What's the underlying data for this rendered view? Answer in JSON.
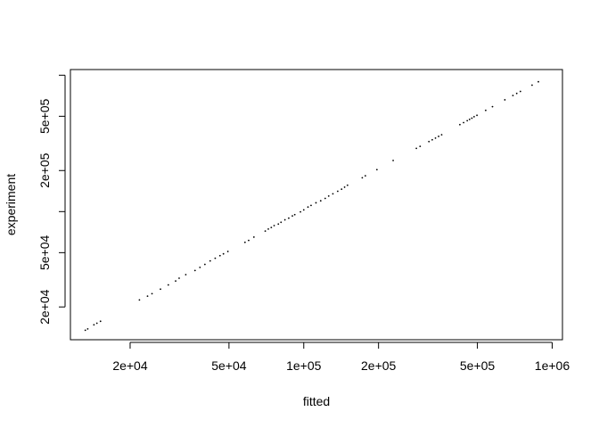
{
  "chart_data": {
    "type": "scatter",
    "title": "",
    "xlabel": "fitted",
    "ylabel": "experiment",
    "xscale": "log",
    "yscale": "log",
    "xlim": [
      11500,
      1100000
    ],
    "ylim": [
      11500,
      1100000
    ],
    "grid": false,
    "legend": "none",
    "point_color": "#000000",
    "x_ticks": [
      {
        "value": 20000,
        "label": "2e+04"
      },
      {
        "value": 50000,
        "label": "5e+04"
      },
      {
        "value": 100000,
        "label": "1e+05"
      },
      {
        "value": 200000,
        "label": "2e+05"
      },
      {
        "value": 500000,
        "label": "5e+05"
      },
      {
        "value": 1000000,
        "label": "1e+06"
      }
    ],
    "y_ticks": [
      {
        "value": 20000,
        "label": "2e+04"
      },
      {
        "value": 50000,
        "label": "5e+04"
      },
      {
        "value": 100000,
        "label": ""
      },
      {
        "value": 200000,
        "label": "2e+05"
      },
      {
        "value": 500000,
        "label": "5e+05"
      },
      {
        "value": 1000000,
        "label": ""
      }
    ],
    "x": [
      13200,
      13500,
      14300,
      14700,
      15200,
      21800,
      23500,
      24500,
      26500,
      28500,
      30500,
      31500,
      33500,
      36500,
      38200,
      40000,
      42000,
      44000,
      46000,
      47500,
      49500,
      58000,
      60000,
      63000,
      70000,
      72000,
      74000,
      76000,
      79000,
      81000,
      84000,
      87000,
      90000,
      92000,
      97000,
      100000,
      104000,
      107000,
      112000,
      117000,
      122000,
      126000,
      131000,
      137000,
      142000,
      146000,
      150000,
      172000,
      177000,
      197000,
      229000,
      284000,
      294000,
      319000,
      329000,
      339000,
      349000,
      359000,
      425000,
      440000,
      455000,
      465000,
      475000,
      485000,
      498000,
      540000,
      575000,
      645000,
      695000,
      720000,
      745000,
      830000,
      880000
    ],
    "y": [
      13500,
      13800,
      14800,
      15200,
      15700,
      22500,
      24000,
      25000,
      27000,
      29000,
      31000,
      32500,
      34500,
      37000,
      39000,
      41000,
      43500,
      45500,
      47500,
      49000,
      51000,
      59500,
      61500,
      65000,
      72000,
      74500,
      76500,
      79000,
      81000,
      83500,
      87000,
      89500,
      93000,
      95000,
      99500,
      103000,
      108000,
      111000,
      116000,
      120000,
      125000,
      130000,
      135000,
      141000,
      146000,
      151000,
      156000,
      177000,
      183000,
      203000,
      237000,
      291000,
      301000,
      326000,
      336000,
      346000,
      356000,
      366000,
      434000,
      449000,
      464000,
      474000,
      484000,
      496000,
      508000,
      552000,
      588000,
      660000,
      710000,
      735000,
      760000,
      845000,
      895000
    ]
  }
}
